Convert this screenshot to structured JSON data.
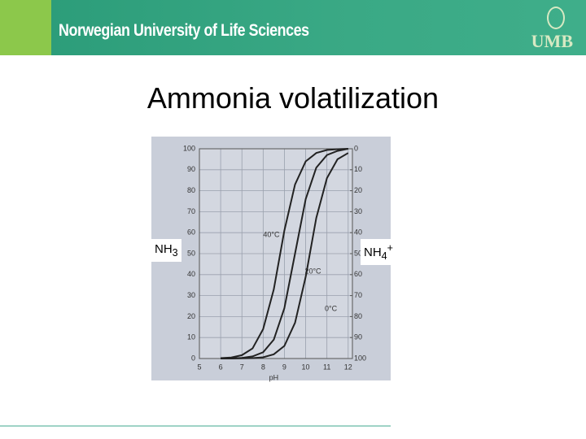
{
  "header": {
    "university": "Norwegian University of Life Sciences",
    "logo": "UMB"
  },
  "chart_data": {
    "type": "line",
    "title": "Ammonia volatilization",
    "x_label": "pH",
    "left_label": {
      "text": "NH",
      "sub": "3"
    },
    "right_label": {
      "text": "NH",
      "sub": "4",
      "sup": "+"
    },
    "x": [
      6,
      6.5,
      7,
      7.5,
      8,
      8.5,
      9,
      9.5,
      10,
      10.5,
      11,
      11.5,
      12
    ],
    "series": [
      {
        "name": "40°C",
        "color": "#222222",
        "values": [
          0.2,
          0.5,
          1.6,
          4.8,
          14,
          33,
          61,
          83,
          94,
          98,
          99.4,
          99.8,
          100
        ]
      },
      {
        "name": "20°C",
        "color": "#222222",
        "values": [
          0,
          0.1,
          0.3,
          1,
          3,
          9,
          24,
          50,
          76,
          91,
          97,
          99,
          100
        ]
      },
      {
        "name": "0°C",
        "color": "#222222",
        "values": [
          0,
          0,
          0.1,
          0.2,
          0.6,
          2,
          6,
          17,
          39,
          67,
          86,
          95,
          98
        ]
      }
    ],
    "xlim": [
      5,
      12.2
    ],
    "xticks": [
      5,
      6,
      7,
      8,
      9,
      10,
      11,
      12
    ],
    "ylim": [
      0,
      100
    ],
    "yticks": [
      0,
      10,
      20,
      30,
      40,
      50,
      60,
      70,
      80,
      90,
      100
    ],
    "y2lim": [
      100,
      0
    ],
    "y2ticks": [
      0,
      10,
      20,
      30,
      40,
      50,
      60,
      70,
      80,
      90,
      100
    ],
    "grid": true
  }
}
